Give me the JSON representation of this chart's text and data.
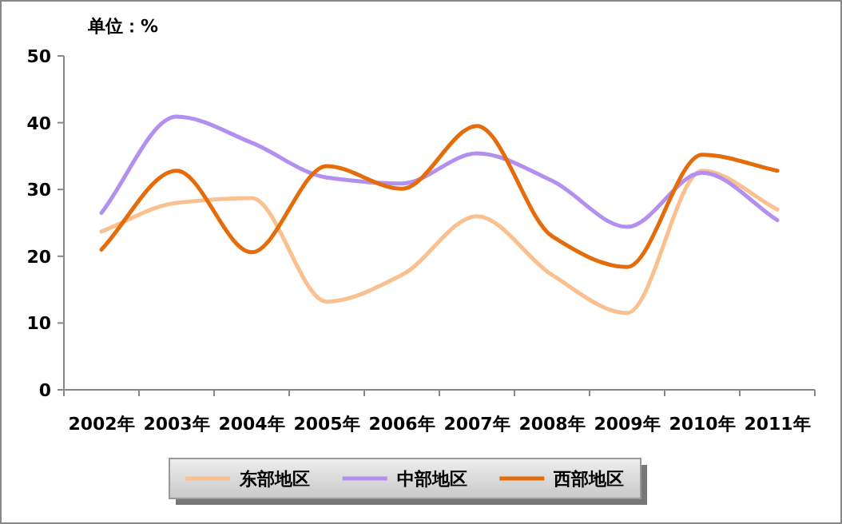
{
  "chart_data": {
    "type": "line",
    "ylabel": "单位：%",
    "categories": [
      "2002年",
      "2003年",
      "2004年",
      "2005年",
      "2006年",
      "2007年",
      "2008年",
      "2009年",
      "2010年",
      "2011年"
    ],
    "series": [
      {
        "name": "东部地区",
        "color": "#fac090",
        "values": [
          23.7,
          28,
          28.7,
          13.2,
          17.2,
          26,
          17.2,
          11.5,
          32.8,
          27
        ]
      },
      {
        "name": "中部地区",
        "color": "#b38ff0",
        "values": [
          26.5,
          40.9,
          37,
          31.8,
          30.9,
          35.4,
          31.3,
          24.4,
          32.5,
          25.4
        ]
      },
      {
        "name": "西部地区",
        "color": "#e46c0a",
        "values": [
          21,
          32.8,
          20.6,
          33.5,
          30.1,
          39.5,
          23,
          18.4,
          35.2,
          32.8
        ]
      }
    ],
    "ylim": [
      0,
      50
    ],
    "yticks": [
      0,
      10,
      20,
      30,
      40,
      50
    ],
    "grid": false,
    "legend": "bottom"
  }
}
